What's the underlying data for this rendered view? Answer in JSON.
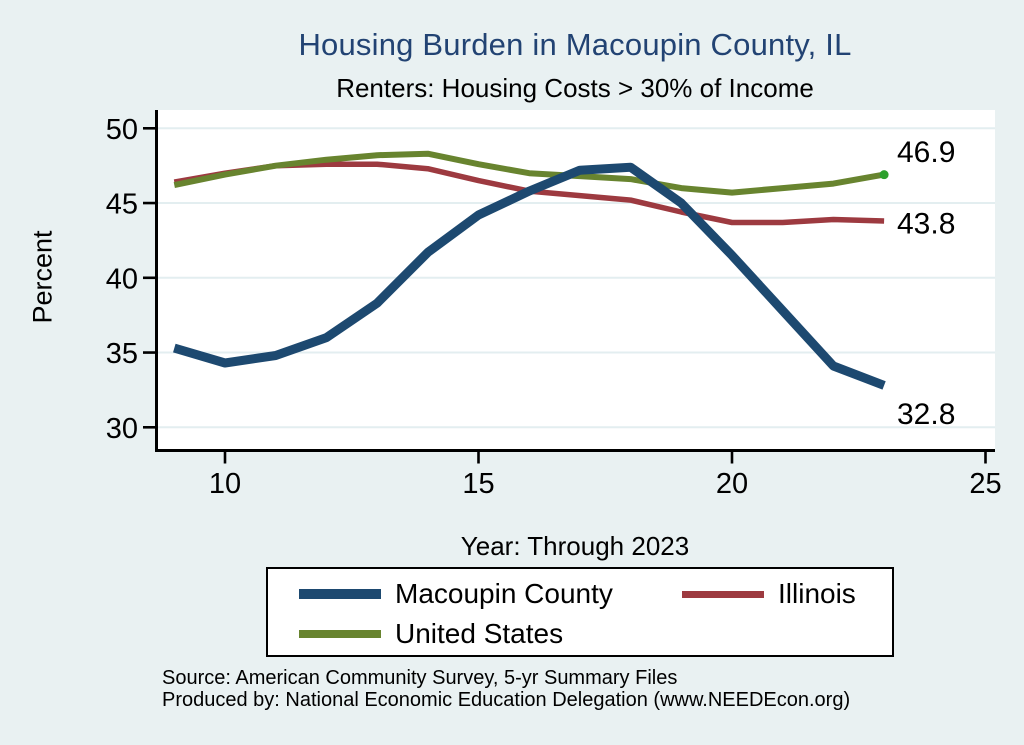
{
  "colors": {
    "background": "#e9f1f2",
    "plot_bg": "#ffffff",
    "grid": "#e3eef0",
    "axis": "#000000",
    "title_color": "#224373",
    "text_color": "#000000"
  },
  "source": {
    "line1": "Source: American Community Survey, 5-yr Summary Files",
    "line2": "Produced by: National Economic Education Delegation (www.NEEDEcon.org)"
  },
  "chart_data": {
    "type": "line",
    "title": "Housing Burden in Macoupin County, IL",
    "subtitle": "Renters: Housing Costs > 30% of Income",
    "ylabel": "Percent",
    "xlabel": "Year: Through 2023",
    "x": [
      9,
      10,
      11,
      12,
      13,
      14,
      15,
      16,
      17,
      18,
      19,
      20,
      21,
      22,
      23
    ],
    "xticks": [
      10,
      15,
      20,
      25
    ],
    "yticks": [
      30,
      35,
      40,
      45,
      50
    ],
    "xlim": [
      8.6,
      25.2
    ],
    "ylim": [
      28.5,
      51.3
    ],
    "grid": "horizontal only",
    "legend_position": "bottom",
    "series": [
      {
        "name": "Illinois",
        "color": "#9d3a40",
        "stroke_width": 5.5,
        "values": [
          46.4,
          47.0,
          47.5,
          47.6,
          47.6,
          47.3,
          46.5,
          45.8,
          45.5,
          45.2,
          44.4,
          43.7,
          43.7,
          43.9,
          43.8
        ],
        "end_label": "43.8",
        "end_label_offset": 2
      },
      {
        "name": "United States",
        "color": "#68842f",
        "stroke_width": 6,
        "values": [
          46.2,
          46.9,
          47.5,
          47.9,
          48.2,
          48.3,
          47.6,
          47.0,
          46.8,
          46.6,
          46.0,
          45.7,
          46.0,
          46.3,
          46.9
        ],
        "end_label": "46.9",
        "end_label_offset": -23,
        "end_marker_color": "#2da02d"
      },
      {
        "name": "Macoupin County",
        "color": "#1d4970",
        "stroke_width": 9,
        "values": [
          35.3,
          34.3,
          34.8,
          36.0,
          38.3,
          41.7,
          44.2,
          45.8,
          47.2,
          47.4,
          45.0,
          41.5,
          37.8,
          34.1,
          32.8
        ],
        "end_label": "32.8",
        "end_label_offset": 28
      }
    ]
  },
  "legend": {
    "row1": [
      "Macoupin County",
      "Illinois"
    ],
    "row2": [
      "United States"
    ]
  }
}
